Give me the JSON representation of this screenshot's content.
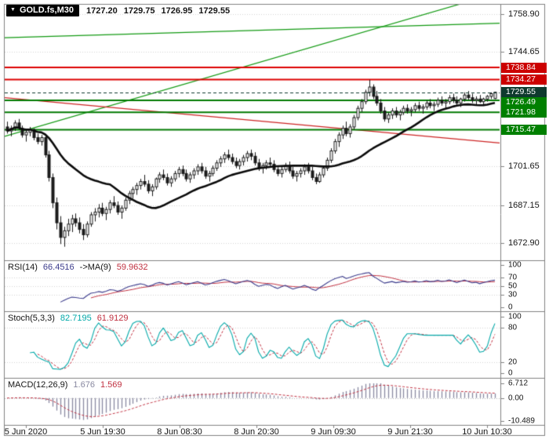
{
  "window": {
    "symbol": "GOLD.fs,M30",
    "ohlc": {
      "open": "1727.20",
      "high": "1729.75",
      "low": "1726.95",
      "close": "1729.55"
    }
  },
  "icons": {
    "dropdown": "▼"
  },
  "colors": {
    "candle_up_fill": "#ffffff",
    "candle_down_fill": "#1a1a1a",
    "candle_outline": "#1a1a1a",
    "ma_line": "#0a0a0a",
    "resistance_line": "#dd0000",
    "support_line": "#007a00",
    "trend_green": "#119911",
    "trend_red": "#cc2222",
    "current_price": "#0e3a2e",
    "badge_red": "#cc0000",
    "badge_green": "#008000",
    "badge_current": "#0e3a2e",
    "rsi_line": "#3c3c8c",
    "rsi_ma_line": "#c03040",
    "stoch_k_line": "#00a8a8",
    "stoch_d_line": "#c03040",
    "macd_hist": "#8888a0",
    "macd_signal": "#c03040",
    "grid": "#d2d2d2",
    "border": "#808080"
  },
  "price_scale": {
    "labels": [
      {
        "text": "1758.90",
        "price": 1758.9
      },
      {
        "text": "1744.65",
        "price": 1744.65
      },
      {
        "text": "1701.65",
        "price": 1701.65
      },
      {
        "text": "1687.15",
        "price": 1687.15
      },
      {
        "text": "1672.90",
        "price": 1672.9
      }
    ],
    "badges": [
      {
        "text": "1738.84",
        "price": 1738.84,
        "type": "resistance"
      },
      {
        "text": "1734.27",
        "price": 1734.27,
        "type": "resistance"
      },
      {
        "text": "1729.55",
        "price": 1729.55,
        "type": "current"
      },
      {
        "text": "1726.49",
        "price": 1726.49,
        "type": "support"
      },
      {
        "text": "1721.98",
        "price": 1721.98,
        "type": "support"
      },
      {
        "text": "1715.47",
        "price": 1715.47,
        "type": "support"
      }
    ]
  },
  "time_axis": [
    "5 Jun 2020",
    "5 Jun 19:30",
    "8 Jun 08:30",
    "8 Jun 20:30",
    "9 Jun 09:30",
    "9 Jun 21:30",
    "10 Jun 10:30"
  ],
  "panes": {
    "rsi": {
      "name": "RSI(14)",
      "value": "66.4516",
      "ma_name": "->MA(9)",
      "ma_value": "59.9632",
      "scale": [
        {
          "text": "100",
          "v": 100
        },
        {
          "text": "70",
          "v": 70
        },
        {
          "text": "50",
          "v": 50
        },
        {
          "text": "30",
          "v": 30
        },
        {
          "text": "0",
          "v": 0
        }
      ],
      "grid": [
        70,
        50,
        30
      ]
    },
    "stoch": {
      "name": "Stoch(5,3,3)",
      "k_value": "82.7195",
      "d_value": "61.9129",
      "scale": [
        {
          "text": "100",
          "v": 100
        },
        {
          "text": "80",
          "v": 80
        },
        {
          "text": "20",
          "v": 20
        },
        {
          "text": "0",
          "v": 0
        }
      ],
      "grid": [
        80,
        20
      ]
    },
    "macd": {
      "name": "MACD(12,26,9)",
      "value": "1.676",
      "signal_value": "1.569",
      "scale": [
        {
          "text": "6.712",
          "v": 6.712
        },
        {
          "text": "0.00",
          "v": 0
        },
        {
          "text": "-10.489",
          "v": -10.489
        }
      ],
      "grid": [
        0
      ]
    }
  },
  "chart_data": {
    "type": "candlestick",
    "symbol": "GOLD.fs",
    "timeframe": "M30",
    "title": "GOLD.fs,M30 1727.20 1729.75 1726.95 1729.55",
    "last_ohlc": {
      "open": 1727.2,
      "high": 1729.75,
      "low": 1726.95,
      "close": 1729.55
    },
    "y_axis": {
      "min": 1671,
      "max": 1761,
      "gridline_values": [
        1758.9,
        1744.65,
        1701.65,
        1687.15,
        1672.9
      ]
    },
    "x_labels": [
      "5 Jun 2020",
      "5 Jun 19:30",
      "8 Jun 08:30",
      "8 Jun 20:30",
      "9 Jun 09:30",
      "9 Jun 21:30",
      "10 Jun 10:30"
    ],
    "horizontal_levels": {
      "resistance": [
        1738.84,
        1734.27
      ],
      "support": [
        1726.49,
        1721.98,
        1715.47
      ],
      "current_price": 1729.55
    },
    "trendlines": [
      {
        "color": "green",
        "from": [
          0.0,
          1713.0
        ],
        "to": [
          1.0,
          1767.0
        ]
      },
      {
        "color": "green",
        "from": [
          0.0,
          1750.0
        ],
        "to": [
          1.0,
          1755.5
        ]
      },
      {
        "color": "red",
        "from": [
          0.0,
          1727.5
        ],
        "to": [
          1.0,
          1710.5
        ]
      }
    ],
    "moving_average": {
      "type": "SMA",
      "period": 28
    },
    "indicators": {
      "rsi": {
        "period": 14,
        "ma_period": 9,
        "last": 66.4516,
        "ma_last": 59.9632,
        "scale": [
          100,
          70,
          50,
          30,
          0
        ]
      },
      "stochastic": {
        "k": 5,
        "d": 3,
        "slowing": 3,
        "last_k": 82.7195,
        "last_d": 61.9129,
        "scale": [
          100,
          80,
          20,
          0
        ]
      },
      "macd": {
        "fast": 12,
        "slow": 26,
        "signal": 9,
        "last": 1.676,
        "last_signal": 1.569,
        "scale_max": 6.712,
        "scale_min": -10.489
      }
    },
    "candles": [
      [
        1716.5,
        1718.5,
        1714,
        1715
      ],
      [
        1715,
        1717,
        1713,
        1716
      ],
      [
        1716,
        1719,
        1715,
        1718
      ],
      [
        1718,
        1719.5,
        1715.5,
        1716
      ],
      [
        1716,
        1717,
        1712.5,
        1713.5
      ],
      [
        1713.5,
        1715.5,
        1711,
        1714.5
      ],
      [
        1714.5,
        1716.5,
        1713,
        1715.5
      ],
      [
        1715.5,
        1716,
        1711.5,
        1712.5
      ],
      [
        1712.5,
        1714,
        1710,
        1711
      ],
      [
        1711,
        1713.5,
        1709.5,
        1712.5
      ],
      [
        1712.5,
        1713,
        1705,
        1706
      ],
      [
        1706,
        1707.5,
        1696,
        1697.5
      ],
      [
        1697.5,
        1699,
        1686,
        1688
      ],
      [
        1688,
        1690,
        1678,
        1680.5
      ],
      [
        1680.5,
        1683,
        1672.5,
        1675
      ],
      [
        1675,
        1679,
        1671.5,
        1677.5
      ],
      [
        1677.5,
        1682,
        1675.5,
        1680
      ],
      [
        1680,
        1683.5,
        1677,
        1682
      ],
      [
        1682,
        1684,
        1679,
        1680.5
      ],
      [
        1680.5,
        1682.5,
        1676.5,
        1678
      ],
      [
        1678,
        1680,
        1674,
        1676
      ],
      [
        1676,
        1681,
        1675,
        1680
      ],
      [
        1680,
        1684.5,
        1679,
        1683.5
      ],
      [
        1683.5,
        1686,
        1681,
        1684.5
      ],
      [
        1684.5,
        1687.5,
        1682.5,
        1686
      ],
      [
        1686,
        1688,
        1683,
        1684
      ],
      [
        1684,
        1686.5,
        1681.5,
        1685.5
      ],
      [
        1685.5,
        1689,
        1684,
        1688
      ],
      [
        1688,
        1690.5,
        1686,
        1687
      ],
      [
        1687,
        1688.5,
        1683.5,
        1684.5
      ],
      [
        1684.5,
        1687,
        1682,
        1686
      ],
      [
        1686,
        1690,
        1685,
        1689
      ],
      [
        1689,
        1692.5,
        1687.5,
        1691.5
      ],
      [
        1691.5,
        1694,
        1689.5,
        1693
      ],
      [
        1693,
        1695.5,
        1691,
        1694.5
      ],
      [
        1694.5,
        1697,
        1693,
        1696
      ],
      [
        1696,
        1698.5,
        1694,
        1695
      ],
      [
        1695,
        1696.5,
        1691.5,
        1692.5
      ],
      [
        1692.5,
        1695,
        1690.5,
        1694
      ],
      [
        1694,
        1697.5,
        1693,
        1697
      ],
      [
        1697,
        1699.5,
        1695.5,
        1698.5
      ],
      [
        1698.5,
        1700.5,
        1696.5,
        1697.5
      ],
      [
        1697.5,
        1699,
        1694.5,
        1695.5
      ],
      [
        1695.5,
        1698,
        1694,
        1697
      ],
      [
        1697,
        1700,
        1696,
        1699
      ],
      [
        1699,
        1701.5,
        1697.5,
        1700.5
      ],
      [
        1700.5,
        1702,
        1698,
        1699
      ],
      [
        1699,
        1700.5,
        1696,
        1697
      ],
      [
        1697,
        1699.5,
        1695.5,
        1698.5
      ],
      [
        1698.5,
        1701,
        1697,
        1700
      ],
      [
        1700,
        1702.5,
        1698.5,
        1701.5
      ],
      [
        1701.5,
        1703,
        1699,
        1700
      ],
      [
        1700,
        1701.5,
        1697,
        1698
      ],
      [
        1698,
        1700,
        1696,
        1699
      ],
      [
        1699,
        1702,
        1698,
        1701
      ],
      [
        1701,
        1704,
        1700,
        1703
      ],
      [
        1703,
        1705.5,
        1701.5,
        1704.5
      ],
      [
        1704.5,
        1707,
        1703,
        1706
      ],
      [
        1706,
        1708,
        1704,
        1705
      ],
      [
        1705,
        1706.5,
        1702.5,
        1703.5
      ],
      [
        1703.5,
        1705,
        1701,
        1702
      ],
      [
        1702,
        1704.5,
        1700.5,
        1703.5
      ],
      [
        1703.5,
        1706,
        1702,
        1705
      ],
      [
        1705,
        1707.5,
        1703.5,
        1706.5
      ],
      [
        1706.5,
        1708,
        1704,
        1705.5
      ],
      [
        1705.5,
        1707,
        1702,
        1703
      ],
      [
        1703,
        1704.5,
        1700,
        1701
      ],
      [
        1701,
        1703,
        1699,
        1702
      ],
      [
        1702,
        1704,
        1700.5,
        1703
      ],
      [
        1703,
        1705,
        1701.5,
        1702.5
      ],
      [
        1702.5,
        1704,
        1699.5,
        1700.5
      ],
      [
        1700.5,
        1702,
        1698,
        1699
      ],
      [
        1699,
        1701.5,
        1697.5,
        1700.5
      ],
      [
        1700.5,
        1703,
        1699.5,
        1702
      ],
      [
        1702,
        1703.5,
        1699,
        1700
      ],
      [
        1700,
        1701.5,
        1697,
        1698
      ],
      [
        1698,
        1700,
        1696,
        1699
      ],
      [
        1699,
        1701,
        1697.5,
        1700
      ],
      [
        1700,
        1702.5,
        1698.5,
        1701.5
      ],
      [
        1701.5,
        1703,
        1699,
        1700
      ],
      [
        1700,
        1701.5,
        1696.5,
        1697.5
      ],
      [
        1697.5,
        1699,
        1695,
        1696
      ],
      [
        1696,
        1699.5,
        1695.5,
        1698.5
      ],
      [
        1698.5,
        1702,
        1697.5,
        1701
      ],
      [
        1701,
        1705,
        1700,
        1704
      ],
      [
        1704,
        1708.5,
        1703,
        1707.5
      ],
      [
        1707.5,
        1712,
        1706.5,
        1711
      ],
      [
        1711,
        1714.5,
        1709,
        1713.5
      ],
      [
        1713.5,
        1717,
        1712,
        1716
      ],
      [
        1716,
        1718.5,
        1713,
        1714
      ],
      [
        1714,
        1717.5,
        1712.5,
        1716.5
      ],
      [
        1716.5,
        1721,
        1715.5,
        1720
      ],
      [
        1720,
        1724.5,
        1719,
        1723.5
      ],
      [
        1723.5,
        1727,
        1722,
        1726
      ],
      [
        1726,
        1730.5,
        1725,
        1729.5
      ],
      [
        1729.5,
        1734.2,
        1728,
        1731.5
      ],
      [
        1731.5,
        1732.5,
        1727,
        1728
      ],
      [
        1728,
        1730,
        1724.5,
        1725.5
      ],
      [
        1725.5,
        1727,
        1721.5,
        1722.5
      ],
      [
        1722.5,
        1724,
        1718.5,
        1719.5
      ],
      [
        1719.5,
        1722,
        1718,
        1721
      ],
      [
        1721,
        1723.5,
        1719.5,
        1722.5
      ],
      [
        1722.5,
        1724,
        1720,
        1721
      ],
      [
        1721,
        1723,
        1719,
        1722
      ],
      [
        1722,
        1724.5,
        1721,
        1723.5
      ],
      [
        1723.5,
        1725,
        1721.5,
        1722.5
      ],
      [
        1722.5,
        1724,
        1720.5,
        1723
      ],
      [
        1723,
        1725.5,
        1722,
        1724.5
      ],
      [
        1724.5,
        1726,
        1722.5,
        1723.5
      ],
      [
        1723.5,
        1725,
        1721.5,
        1724
      ],
      [
        1724,
        1726.5,
        1723,
        1725.5
      ],
      [
        1725.5,
        1727,
        1723.5,
        1724.5
      ],
      [
        1724.5,
        1726,
        1722.5,
        1725
      ],
      [
        1725,
        1727.5,
        1724,
        1726.5
      ],
      [
        1726.5,
        1728,
        1724.5,
        1725.5
      ],
      [
        1725.5,
        1727,
        1723.5,
        1726
      ],
      [
        1726,
        1728.5,
        1725,
        1727.5
      ],
      [
        1727.5,
        1729,
        1725.5,
        1726.5
      ],
      [
        1726.5,
        1728,
        1724.5,
        1725.5
      ],
      [
        1725.5,
        1727.5,
        1724,
        1727
      ],
      [
        1727,
        1729.5,
        1726,
        1728.5
      ],
      [
        1728.5,
        1730,
        1726.5,
        1727.5
      ],
      [
        1727.5,
        1729,
        1725.5,
        1726.5
      ],
      [
        1726.5,
        1728,
        1725,
        1727
      ],
      [
        1727,
        1728.5,
        1725.5,
        1726
      ],
      [
        1726,
        1727.5,
        1724.5,
        1727
      ],
      [
        1727,
        1728.5,
        1726,
        1728
      ],
      [
        1728,
        1729.5,
        1727,
        1729
      ],
      [
        1727.2,
        1729.75,
        1726.95,
        1729.55
      ]
    ]
  }
}
